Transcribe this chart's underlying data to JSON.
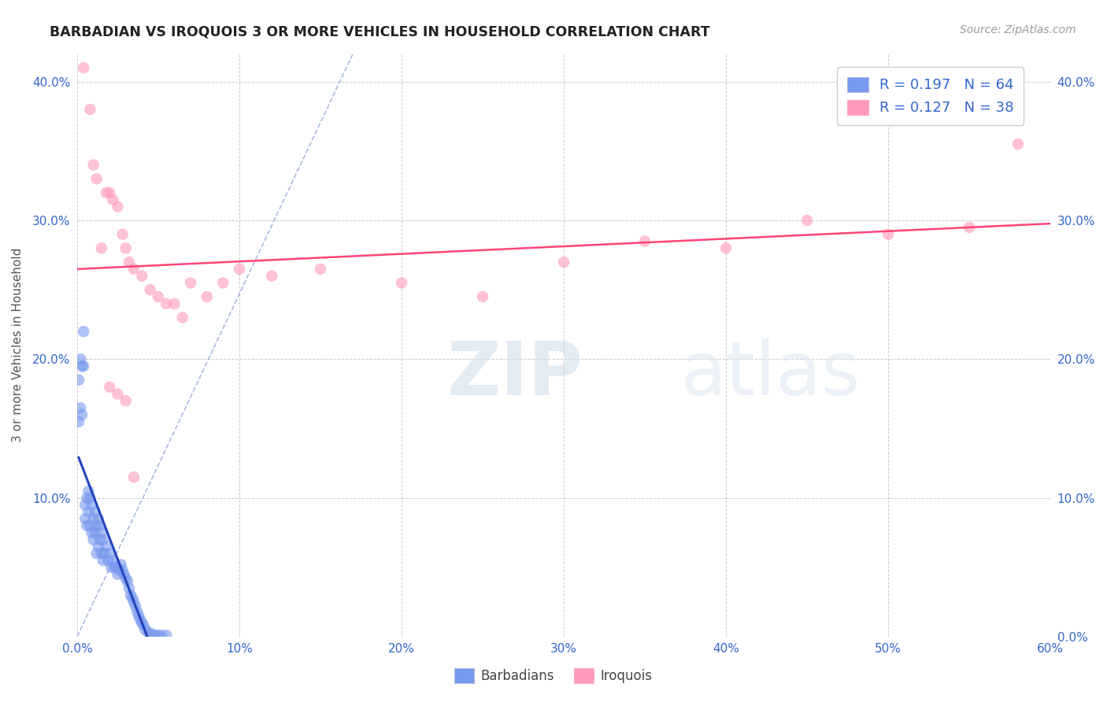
{
  "title": "BARBADIAN VS IROQUOIS 3 OR MORE VEHICLES IN HOUSEHOLD CORRELATION CHART",
  "source": "Source: ZipAtlas.com",
  "ylabel": "3 or more Vehicles in Household",
  "xmin": 0.0,
  "xmax": 0.6,
  "ymin": 0.0,
  "ymax": 0.42,
  "xticks": [
    0.0,
    0.1,
    0.2,
    0.3,
    0.4,
    0.5,
    0.6
  ],
  "yticks": [
    0.0,
    0.1,
    0.2,
    0.3,
    0.4
  ],
  "background": "#ffffff",
  "grid_color": "#cccccc",
  "legend_R": [
    0.197,
    0.127
  ],
  "legend_N": [
    64,
    38
  ],
  "blue_color": "#7799ee",
  "pink_color": "#ff99bb",
  "blue_line_color": "#2244bb",
  "pink_line_color": "#ff4477",
  "dashed_line_color": "#aabbdd",
  "barbadian_x": [
    0.001,
    0.001,
    0.002,
    0.002,
    0.003,
    0.003,
    0.004,
    0.004,
    0.005,
    0.005,
    0.006,
    0.006,
    0.007,
    0.007,
    0.008,
    0.008,
    0.009,
    0.009,
    0.01,
    0.01,
    0.011,
    0.011,
    0.012,
    0.012,
    0.013,
    0.013,
    0.014,
    0.014,
    0.015,
    0.015,
    0.016,
    0.016,
    0.017,
    0.018,
    0.019,
    0.02,
    0.021,
    0.022,
    0.023,
    0.024,
    0.025,
    0.026,
    0.027,
    0.028,
    0.029,
    0.03,
    0.031,
    0.032,
    0.033,
    0.034,
    0.035,
    0.036,
    0.037,
    0.038,
    0.039,
    0.04,
    0.041,
    0.042,
    0.044,
    0.046,
    0.048,
    0.05,
    0.052,
    0.055
  ],
  "barbadian_y": [
    0.155,
    0.185,
    0.165,
    0.2,
    0.16,
    0.195,
    0.195,
    0.22,
    0.095,
    0.085,
    0.1,
    0.08,
    0.09,
    0.105,
    0.08,
    0.1,
    0.075,
    0.095,
    0.07,
    0.085,
    0.075,
    0.09,
    0.06,
    0.08,
    0.065,
    0.085,
    0.07,
    0.08,
    0.06,
    0.075,
    0.055,
    0.07,
    0.06,
    0.065,
    0.055,
    0.06,
    0.05,
    0.055,
    0.05,
    0.05,
    0.045,
    0.048,
    0.052,
    0.048,
    0.045,
    0.042,
    0.04,
    0.035,
    0.03,
    0.028,
    0.025,
    0.022,
    0.018,
    0.015,
    0.012,
    0.01,
    0.008,
    0.005,
    0.003,
    0.002,
    0.001,
    0.001,
    0.001,
    0.001
  ],
  "iroquois_x": [
    0.004,
    0.008,
    0.01,
    0.012,
    0.015,
    0.018,
    0.02,
    0.022,
    0.025,
    0.028,
    0.03,
    0.032,
    0.035,
    0.04,
    0.045,
    0.05,
    0.055,
    0.06,
    0.065,
    0.07,
    0.08,
    0.09,
    0.1,
    0.12,
    0.15,
    0.2,
    0.25,
    0.3,
    0.35,
    0.4,
    0.45,
    0.5,
    0.55,
    0.58,
    0.02,
    0.025,
    0.03,
    0.035
  ],
  "iroquois_y": [
    0.41,
    0.38,
    0.34,
    0.33,
    0.28,
    0.32,
    0.32,
    0.315,
    0.31,
    0.29,
    0.28,
    0.27,
    0.265,
    0.26,
    0.25,
    0.245,
    0.24,
    0.24,
    0.23,
    0.255,
    0.245,
    0.255,
    0.265,
    0.26,
    0.265,
    0.255,
    0.245,
    0.27,
    0.285,
    0.28,
    0.3,
    0.29,
    0.295,
    0.355,
    0.18,
    0.175,
    0.17,
    0.115
  ]
}
